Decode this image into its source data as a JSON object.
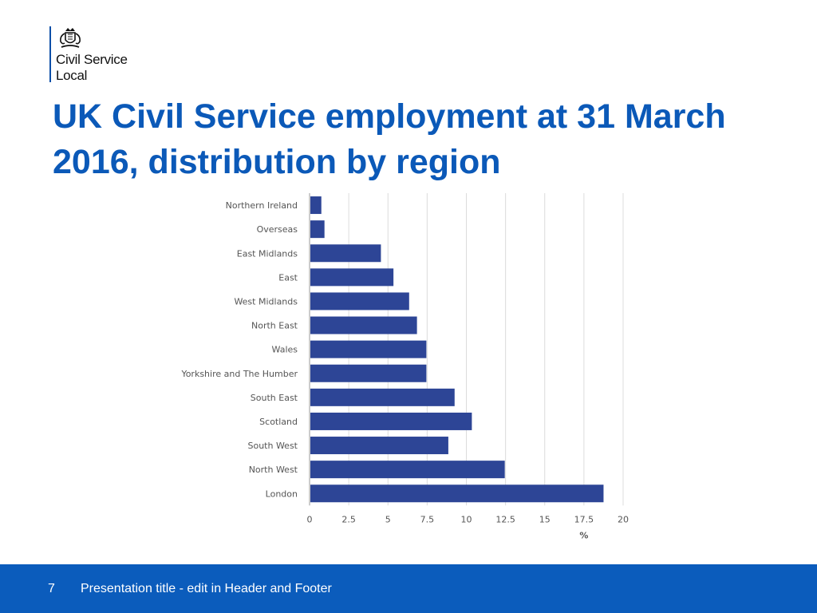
{
  "logo": {
    "line1": "Civil Service",
    "line2": "Local",
    "crest_icon": "royal-coat-of-arms-icon"
  },
  "slide": {
    "title": "UK Civil Service employment at 31 March 2016, distribution by region"
  },
  "chart_data": {
    "type": "bar",
    "orientation": "horizontal",
    "title": "",
    "xlabel": "%",
    "ylabel": "",
    "categories": [
      "Northern Ireland",
      "Overseas",
      "East Midlands",
      "East",
      "West Midlands",
      "North East",
      "Wales",
      "Yorkshire and The Humber",
      "South East",
      "Scotland",
      "South West",
      "North West",
      "London"
    ],
    "values": [
      0.7,
      0.9,
      4.5,
      5.3,
      6.3,
      6.8,
      7.4,
      7.4,
      9.2,
      10.3,
      8.8,
      12.4,
      18.7
    ],
    "xlim": [
      0,
      20
    ],
    "xticks": [
      "0",
      "2.5",
      "5",
      "7.5",
      "10",
      "12.5",
      "15",
      "17.5",
      "20"
    ],
    "grid": true,
    "bar_color": "#2d4596"
  },
  "footer": {
    "page_number": "7",
    "text": "Presentation title - edit in Header and Footer",
    "background": "#0b5cbc"
  }
}
